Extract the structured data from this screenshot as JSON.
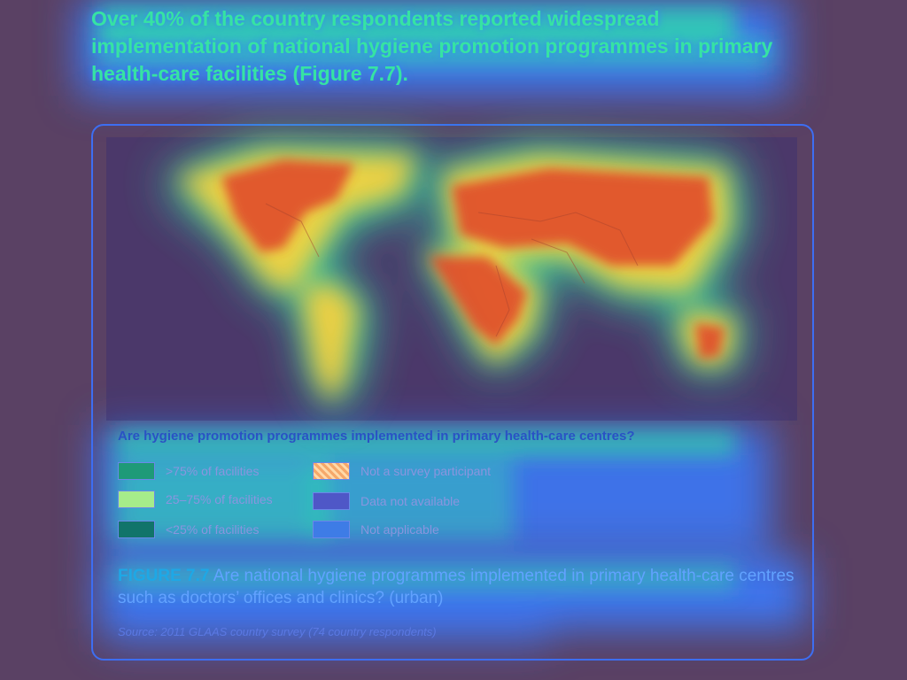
{
  "headline": "Over 40% of the country respondents reported widespread implementation of national hygiene promotion programmes in primary health-care facilities (Figure 7.7).",
  "legend": {
    "title": "Are hygiene promotion programmes implemented in primary health-care centres?",
    "items": [
      {
        "label": ">75% of facilities",
        "color": "#1e9a78"
      },
      {
        "label": "25–75% of facilities",
        "color": "#a6ec8a"
      },
      {
        "label": "<25% of facilities",
        "color": "#11746a"
      },
      {
        "label": "Not a survey participant",
        "color": "#f6a86a",
        "pattern": "crosshatch"
      },
      {
        "label": "Data not available",
        "color": "#4f57c7"
      },
      {
        "label": "Not applicable",
        "color": "#3e7ce6"
      }
    ]
  },
  "caption": {
    "figure_label": "FIGURE 7.7",
    "text": " Are national hygiene programmes implemented in primary health-care centres such as doctors’ offices and clinics? (urban)"
  },
  "source": "Source: 2011 GLAAS country survey (74 country respondents)",
  "colors": {
    "background": "#5a4164",
    "heat_hot": "#e0482c",
    "heat_warm": "#ffd23a",
    "heat_cool": "#31e6a6",
    "heat_cold": "#3d6ef2",
    "map_ocean": "#2d2c8a"
  }
}
